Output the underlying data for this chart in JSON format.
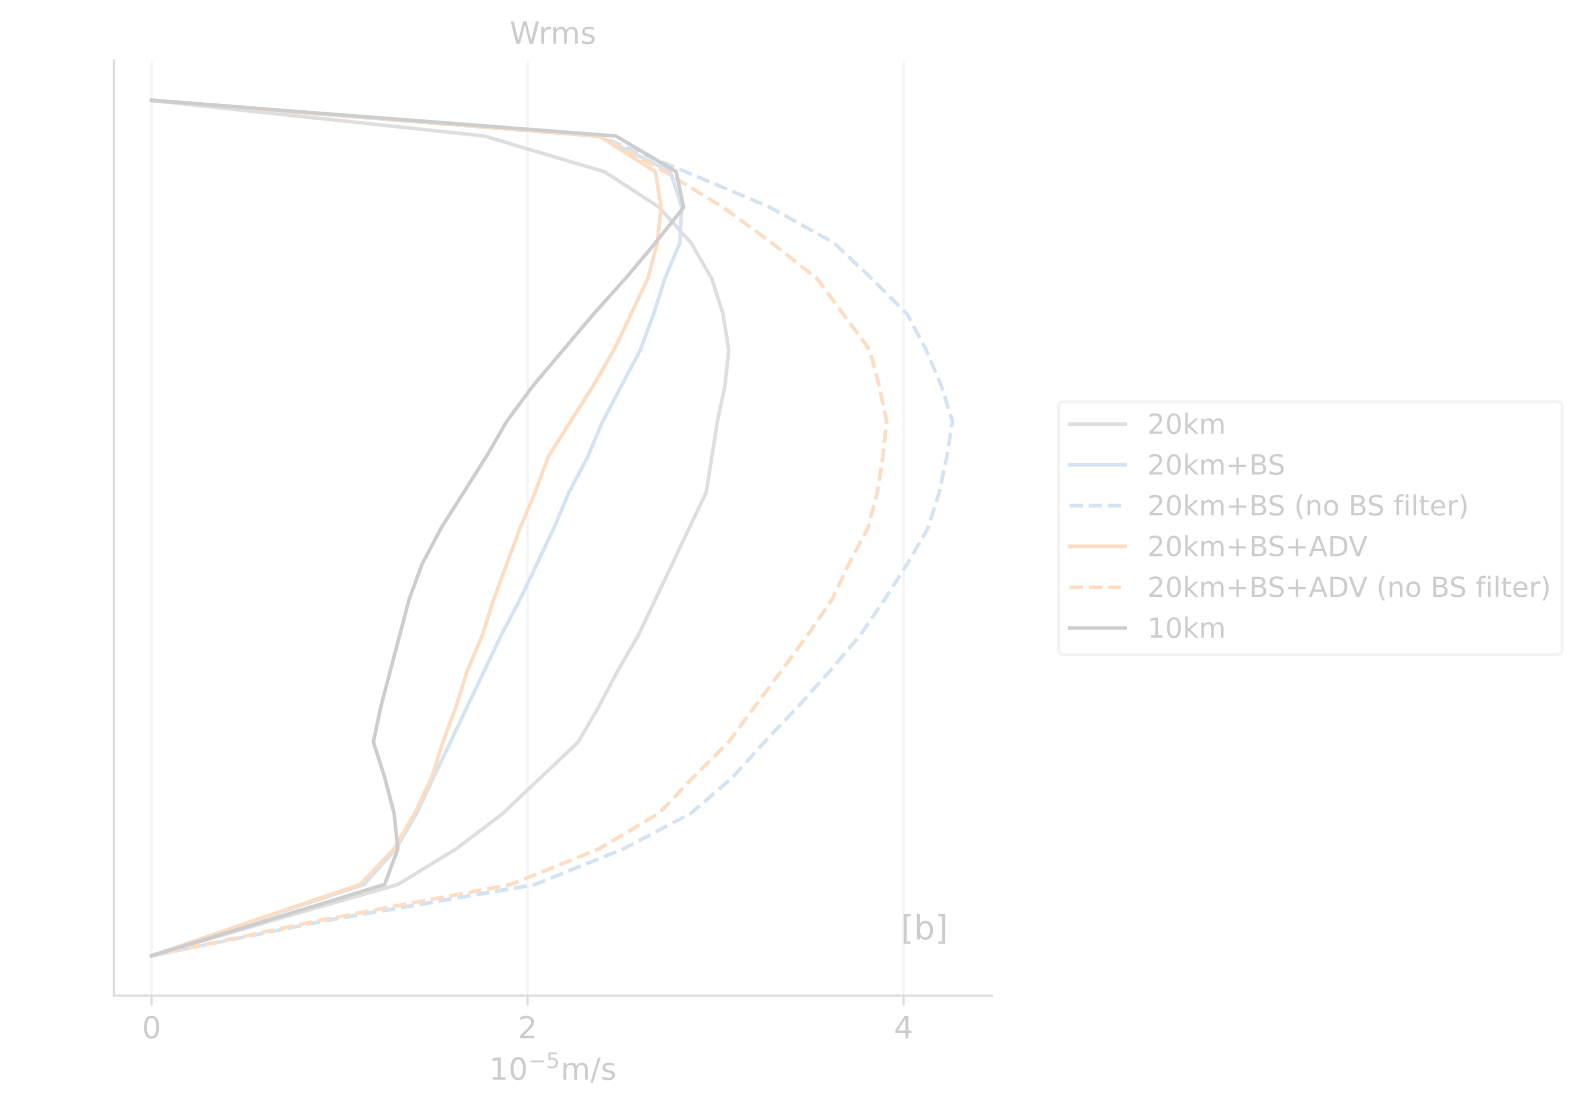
{
  "chart_data": {
    "type": "line",
    "orientation": "horizontal",
    "title": "Wrms",
    "xlabel": "10$^{−5}$m/s",
    "categories": [
      null,
      null,
      null,
      null,
      null,
      null,
      null,
      null,
      null,
      null,
      null,
      null,
      null,
      null,
      null,
      null,
      null,
      null,
      null,
      null,
      null,
      null,
      null,
      null,
      null
    ],
    "series": [
      {
        "name": "20km",
        "color": "#dedede",
        "line_style": "solid",
        "values": [
          0,
          1.77,
          2.41,
          2.7,
          2.87,
          2.98,
          3.04,
          3.07,
          3.05,
          3.01,
          2.98,
          2.95,
          2.86,
          2.77,
          2.68,
          2.59,
          2.48,
          2.38,
          2.27,
          2.07,
          1.87,
          1.62,
          1.31,
          0.65,
          0
        ]
      },
      {
        "name": "20km+BS",
        "color": "#d3e3f1",
        "line_style": "solid",
        "values": [
          0,
          2.38,
          2.76,
          2.82,
          2.81,
          2.73,
          2.67,
          2.6,
          2.5,
          2.4,
          2.32,
          2.22,
          2.14,
          2.05,
          1.96,
          1.86,
          1.77,
          1.68,
          1.59,
          1.5,
          1.41,
          1.3,
          1.13,
          0.56,
          0
        ]
      },
      {
        "name": "20km+BS (no BS filter)",
        "color": "#d3e3f1",
        "line_style": "dashed",
        "values": [
          0,
          2.38,
          2.84,
          3.29,
          3.63,
          3.83,
          4.02,
          4.12,
          4.2,
          4.26,
          4.23,
          4.19,
          4.13,
          4.02,
          3.9,
          3.77,
          3.61,
          3.44,
          3.26,
          3.09,
          2.87,
          2.51,
          2.04,
          0.94,
          0
        ]
      },
      {
        "name": "20km+BS+ADV",
        "color": "#fddcc2",
        "line_style": "solid",
        "values": [
          0,
          2.38,
          2.68,
          2.71,
          2.69,
          2.64,
          2.55,
          2.46,
          2.35,
          2.23,
          2.11,
          2.04,
          1.96,
          1.89,
          1.82,
          1.76,
          1.68,
          1.62,
          1.55,
          1.49,
          1.4,
          1.29,
          1.11,
          0.55,
          0
        ]
      },
      {
        "name": "20km+BS+ADV (no BS filter)",
        "color": "#fddcc2",
        "line_style": "dashed",
        "values": [
          0,
          2.38,
          2.73,
          3.04,
          3.3,
          3.54,
          3.68,
          3.82,
          3.87,
          3.91,
          3.89,
          3.86,
          3.81,
          3.71,
          3.62,
          3.49,
          3.35,
          3.21,
          3.07,
          2.88,
          2.7,
          2.38,
          1.91,
          0.9,
          0
        ]
      },
      {
        "name": "10km",
        "color": "#cdcdcd",
        "line_style": "solid",
        "values": [
          0,
          2.47,
          2.79,
          2.83,
          2.68,
          2.52,
          2.35,
          2.19,
          2.03,
          1.89,
          1.78,
          1.66,
          1.54,
          1.44,
          1.37,
          1.32,
          1.27,
          1.22,
          1.18,
          1.24,
          1.29,
          1.31,
          1.24,
          0.62,
          0
        ]
      }
    ],
    "xlim": [
      -0.2,
      4.47
    ],
    "xticks": [
      0,
      2,
      4
    ],
    "grid": "x",
    "legend": "right",
    "annotations": [
      "[b]"
    ]
  }
}
